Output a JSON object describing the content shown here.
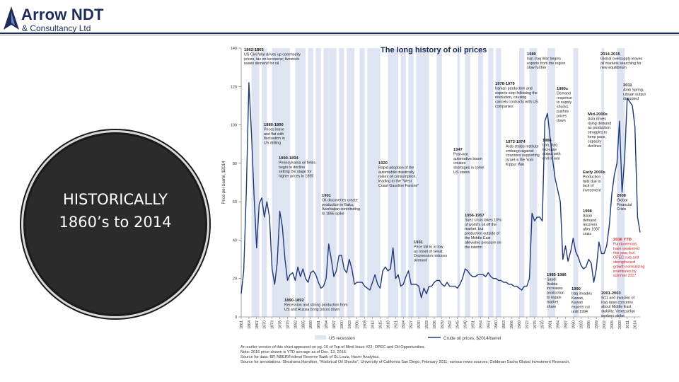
{
  "brand": {
    "name": "Arrow NDT",
    "subtitle": "& Consultancy Ltd",
    "color": "#1d2b57"
  },
  "circle": {
    "line1": "HISTORICALLY",
    "line2": "1860’s to 2014"
  },
  "legend": {
    "recession": "US recession",
    "price": "Crude oil prices, $2014/barrel"
  },
  "notes": [
    "An earlier version of this chart appeared on pg. 10 of Top of Mind Issue #22: OPEC and Oil Opportunities.",
    "Note: 2016 price shown is YTD average as of Dec. 13, 2016.",
    "Source for data: BP, NBER/Federal Reserve Bank of St. Louis, Haver Analytics.",
    "Source for annotations: Shoshana Hamilton, \"Historical Oil Shocks\", University of California San Diego, February 2011; various news sources; Goldman Sachs Global Investment Research."
  ],
  "chart_data": {
    "type": "line",
    "title": "The long history of oil prices",
    "ylabel": "Price per barrel, $2014",
    "xlabel": "",
    "ylim": [
      0,
      140
    ],
    "xlim": [
      1861,
      2016
    ],
    "yticks": [
      0,
      20,
      40,
      60,
      80,
      100,
      120,
      140
    ],
    "xticks": [
      "1861",
      "1864",
      "1867",
      "1870",
      "1873",
      "1876",
      "1879",
      "1882",
      "1885",
      "1888",
      "1891",
      "1894",
      "1897",
      "1900",
      "1903",
      "1906",
      "1909",
      "1912",
      "1915",
      "1918",
      "1921",
      "1924",
      "1927",
      "1930",
      "1933",
      "1936",
      "1939",
      "1942",
      "1945",
      "1948",
      "1951",
      "1954",
      "1957",
      "1960",
      "1963",
      "1966",
      "1969",
      "1972",
      "1975",
      "1978",
      "1981",
      "1984",
      "1987",
      "1990",
      "1993",
      "1996",
      "1999",
      "2002",
      "2005",
      "2008",
      "2011",
      "2014"
    ],
    "series": [
      {
        "name": "Crude oil prices, $2014/barrel",
        "color": "#1f3a7a",
        "points": [
          [
            1861,
            12
          ],
          [
            1862,
            24
          ],
          [
            1863,
            66
          ],
          [
            1864,
            122
          ],
          [
            1865,
            95
          ],
          [
            1866,
            63
          ],
          [
            1867,
            36
          ],
          [
            1868,
            59
          ],
          [
            1869,
            62
          ],
          [
            1870,
            52
          ],
          [
            1871,
            60
          ],
          [
            1872,
            52
          ],
          [
            1873,
            25
          ],
          [
            1874,
            17
          ],
          [
            1875,
            28
          ],
          [
            1876,
            55
          ],
          [
            1877,
            47
          ],
          [
            1878,
            30
          ],
          [
            1879,
            19
          ],
          [
            1880,
            22
          ],
          [
            1881,
            23
          ],
          [
            1882,
            19
          ],
          [
            1883,
            26
          ],
          [
            1884,
            21
          ],
          [
            1885,
            25
          ],
          [
            1886,
            20
          ],
          [
            1887,
            18
          ],
          [
            1888,
            23
          ],
          [
            1889,
            24
          ],
          [
            1890,
            22
          ],
          [
            1891,
            18
          ],
          [
            1892,
            15
          ],
          [
            1893,
            16
          ],
          [
            1894,
            20
          ],
          [
            1895,
            38
          ],
          [
            1896,
            30
          ],
          [
            1897,
            21
          ],
          [
            1898,
            24
          ],
          [
            1899,
            32
          ],
          [
            1900,
            32
          ],
          [
            1901,
            25
          ],
          [
            1902,
            23
          ],
          [
            1903,
            30
          ],
          [
            1904,
            25
          ],
          [
            1905,
            17
          ],
          [
            1906,
            18
          ],
          [
            1907,
            18
          ],
          [
            1908,
            18
          ],
          [
            1909,
            16
          ],
          [
            1910,
            15
          ],
          [
            1911,
            14
          ],
          [
            1912,
            18
          ],
          [
            1913,
            22
          ],
          [
            1914,
            17
          ],
          [
            1915,
            15
          ],
          [
            1916,
            24
          ],
          [
            1917,
            26
          ],
          [
            1918,
            24
          ],
          [
            1919,
            25
          ],
          [
            1920,
            36
          ],
          [
            1921,
            20
          ],
          [
            1922,
            22
          ],
          [
            1923,
            16
          ],
          [
            1924,
            17
          ],
          [
            1925,
            21
          ],
          [
            1926,
            24
          ],
          [
            1927,
            17
          ],
          [
            1928,
            17
          ],
          [
            1929,
            17
          ],
          [
            1930,
            16
          ],
          [
            1931,
            10
          ],
          [
            1932,
            15
          ],
          [
            1933,
            12
          ],
          [
            1934,
            16
          ],
          [
            1935,
            16
          ],
          [
            1936,
            18
          ],
          [
            1937,
            19
          ],
          [
            1938,
            19
          ],
          [
            1939,
            17
          ],
          [
            1940,
            16
          ],
          [
            1941,
            18
          ],
          [
            1942,
            16
          ],
          [
            1943,
            16
          ],
          [
            1944,
            16
          ],
          [
            1945,
            15
          ],
          [
            1946,
            17
          ],
          [
            1947,
            20
          ],
          [
            1948,
            25
          ],
          [
            1949,
            24
          ],
          [
            1950,
            22
          ],
          [
            1951,
            21
          ],
          [
            1952,
            21
          ],
          [
            1953,
            22
          ],
          [
            1954,
            22
          ],
          [
            1955,
            22
          ],
          [
            1956,
            21
          ],
          [
            1957,
            23
          ],
          [
            1958,
            21
          ],
          [
            1959,
            20
          ],
          [
            1960,
            20
          ],
          [
            1961,
            19
          ],
          [
            1962,
            19
          ],
          [
            1963,
            18
          ],
          [
            1964,
            18
          ],
          [
            1965,
            17
          ],
          [
            1966,
            17
          ],
          [
            1967,
            16
          ],
          [
            1968,
            16
          ],
          [
            1969,
            15
          ],
          [
            1970,
            14
          ],
          [
            1971,
            16
          ],
          [
            1972,
            16
          ],
          [
            1973,
            20
          ],
          [
            1974,
            54
          ],
          [
            1975,
            50
          ],
          [
            1976,
            52
          ],
          [
            1977,
            52
          ],
          [
            1978,
            50
          ],
          [
            1979,
            102
          ],
          [
            1980,
            106
          ],
          [
            1981,
            94
          ],
          [
            1982,
            82
          ],
          [
            1983,
            72
          ],
          [
            1984,
            66
          ],
          [
            1985,
            60
          ],
          [
            1986,
            30
          ],
          [
            1987,
            37
          ],
          [
            1988,
            29
          ],
          [
            1989,
            34
          ],
          [
            1990,
            41
          ],
          [
            1991,
            34
          ],
          [
            1992,
            31
          ],
          [
            1993,
            27
          ],
          [
            1994,
            25
          ],
          [
            1995,
            26
          ],
          [
            1996,
            30
          ],
          [
            1997,
            28
          ],
          [
            1998,
            18
          ],
          [
            1999,
            25
          ],
          [
            2000,
            39
          ],
          [
            2001,
            33
          ],
          [
            2002,
            33
          ],
          [
            2003,
            37
          ],
          [
            2004,
            47
          ],
          [
            2005,
            64
          ],
          [
            2006,
            74
          ],
          [
            2007,
            80
          ],
          [
            2008,
            102
          ],
          [
            2009,
            65
          ],
          [
            2010,
            83
          ],
          [
            2011,
            114
          ],
          [
            2012,
            112
          ],
          [
            2013,
            110
          ],
          [
            2014,
            99
          ],
          [
            2015,
            52
          ],
          [
            2016,
            44
          ]
        ]
      }
    ],
    "recessions": [
      [
        1865,
        1867
      ],
      [
        1869,
        1870
      ],
      [
        1873,
        1879
      ],
      [
        1882,
        1885
      ],
      [
        1887,
        1888
      ],
      [
        1890,
        1891
      ],
      [
        1893,
        1894
      ],
      [
        1895,
        1897
      ],
      [
        1899,
        1900
      ],
      [
        1902,
        1904
      ],
      [
        1907,
        1908
      ],
      [
        1910,
        1912
      ],
      [
        1913,
        1914
      ],
      [
        1918,
        1919
      ],
      [
        1920,
        1921
      ],
      [
        1923,
        1924
      ],
      [
        1926,
        1927
      ],
      [
        1929,
        1933
      ],
      [
        1937,
        1938
      ],
      [
        1945,
        1945
      ],
      [
        1948,
        1949
      ],
      [
        1953,
        1954
      ],
      [
        1957,
        1958
      ],
      [
        1960,
        1961
      ],
      [
        1969,
        1970
      ],
      [
        1973,
        1975
      ],
      [
        1980,
        1980
      ],
      [
        1981,
        1982
      ],
      [
        1990,
        1991
      ],
      [
        2001,
        2001
      ],
      [
        2007,
        2009
      ]
    ],
    "annotations": [
      {
        "id": "a1862",
        "lines": [
          "1862-1865",
          "US Civil War drives up commodity",
          "prices, tax on kerosene; livestock",
          "raises demand for oil"
        ],
        "color": "#222222"
      },
      {
        "id": "a1880",
        "lines": [
          "1880-1890",
          "Prices leave",
          "and flat with",
          "fluctuation in",
          "US drilling"
        ],
        "color": "#222222"
      },
      {
        "id": "a1894",
        "lines": [
          "1890-1894",
          "Pennsylvania oil fields",
          "begin to decline",
          "setting the stage for",
          "higher prices in 1895"
        ],
        "color": "#222222"
      },
      {
        "id": "a1901",
        "lines": [
          "1901",
          "Oil discoveries create",
          "production in Baku,",
          "Azerbaijan contributing",
          "to 1895 spike"
        ],
        "color": "#222222"
      },
      {
        "id": "a1920",
        "lines": [
          "1920",
          "Rapid adoption of the",
          "automobile drastically",
          "raises oil consumption,",
          "leading to the \"West",
          "Coast Gasoline Famine\""
        ],
        "color": "#222222"
      },
      {
        "id": "a1947",
        "lines": [
          "1947",
          "Post-war",
          "automotive boom",
          "creates",
          "shortages in some",
          "US states"
        ],
        "color": "#222222"
      },
      {
        "id": "a1931",
        "lines": [
          "1931",
          "Price fall to at low",
          "as onset of Great",
          "Depression reduces",
          "demand"
        ],
        "color": "#222222"
      },
      {
        "id": "a1956",
        "lines": [
          "1956-1957",
          "Suez crisis takes 10%",
          "of world's oil off the",
          "market, but",
          "production outside of",
          "the Middle East",
          "alleviates pressure on",
          "the interim"
        ],
        "color": "#222222"
      },
      {
        "id": "a1890b",
        "lines": [
          "1890-1892",
          "Recession and strong production from",
          "US and Russia bring prices down"
        ],
        "color": "#222222"
      },
      {
        "id": "a1973",
        "lines": [
          "1973-1974",
          "Arab states institute",
          "embargo against",
          "countries supporting",
          "Israel in the Yom",
          "Kippur War"
        ],
        "color": "#222222"
      },
      {
        "id": "a1978",
        "lines": [
          "1978-1979",
          "Iranian production and",
          "exports stop following the",
          "revolution, causing",
          "cancels contracts with US",
          "companies"
        ],
        "color": "#222222"
      },
      {
        "id": "a1980",
        "lines": [
          "1980",
          "Iran-Iraq War begins",
          "exports from the region",
          "slow further"
        ],
        "color": "#222222"
      },
      {
        "id": "a1980s",
        "lines": [
          "1980s",
          "Demand",
          "response",
          "to supply",
          "shocks",
          "pushes",
          "prices",
          "down"
        ],
        "color": "#222222"
      },
      {
        "id": "a1986",
        "lines": [
          "1986",
          "Iran, Iraq",
          "increase",
          "output with",
          "end of war"
        ],
        "color": "#222222"
      },
      {
        "id": "a1985",
        "lines": [
          "1985-1986",
          "Saudi",
          "Arabia",
          "increases",
          "production",
          "to regain",
          "market",
          "share"
        ],
        "color": "#222222"
      },
      {
        "id": "a1990",
        "lines": [
          "1990",
          "Iraq invades",
          "Kuwait,",
          "Kuwait",
          "exports cut",
          "until 1994"
        ],
        "color": "#222222"
      },
      {
        "id": "a1998",
        "lines": [
          "1998",
          "Asian",
          "demand",
          "recovers",
          "after 1997",
          "crisis"
        ],
        "color": "#222222"
      },
      {
        "id": "a2001",
        "lines": [
          "2001-2003",
          "9/11 and invasion of",
          "Iraq raise concerns",
          "about Middle East",
          "stability, Venezuelan",
          "workers strike"
        ],
        "color": "#222222"
      },
      {
        "id": "a2000s",
        "lines": [
          "Mid-2000s",
          "Asia drives",
          "rising demand",
          "as production",
          "struggles to",
          "keep pace,",
          "capacity",
          "declines"
        ],
        "color": "#222222"
      },
      {
        "id": "aearly",
        "lines": [
          "Early 2000s",
          "Production",
          "falls due to",
          "lack of",
          "investment"
        ],
        "color": "#222222"
      },
      {
        "id": "a2008",
        "lines": [
          "2008",
          "Global",
          "Financial",
          "Crisis"
        ],
        "color": "#222222"
      },
      {
        "id": "a2011",
        "lines": [
          "2011",
          "Arab Spring,",
          "Libyan output",
          "disrupted"
        ],
        "color": "#222222"
      },
      {
        "id": "a2014",
        "lines": [
          "2014-2015",
          "Global oversupply leaves",
          "oil markets searching for",
          "new equilibrium"
        ],
        "color": "#222222"
      },
      {
        "id": "a2016",
        "lines": [
          "2016 YTD",
          "Fundamentals",
          "have weakened",
          "this year, but",
          "OPEC cuts and",
          "strengthened",
          "growth normalizing",
          "inventories by",
          "summer 2017"
        ],
        "color": "#d21e1e"
      }
    ]
  }
}
